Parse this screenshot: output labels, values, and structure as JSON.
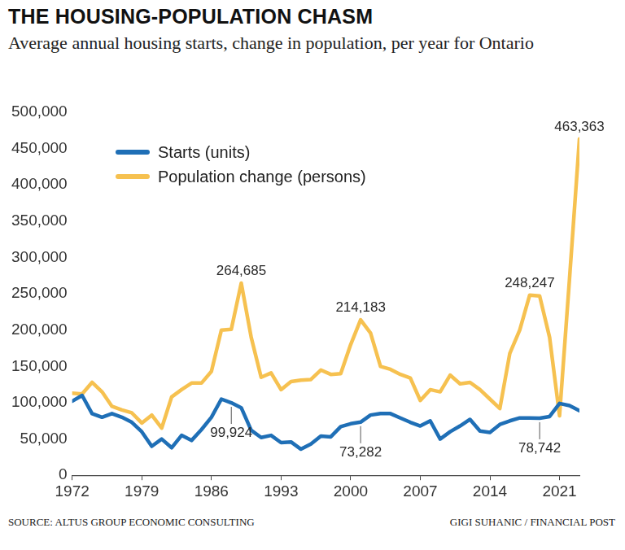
{
  "chart_data": {
    "type": "line",
    "title": "THE HOUSING-POPULATION CHASM",
    "subtitle": "Average annual housing starts, change in population, per year for Ontario",
    "source": "SOURCE: ALTUS GROUP ECONOMIC CONSULTING",
    "credit": "GIGI SUHANIC / FINANCIAL POST",
    "x": [
      1972,
      1973,
      1974,
      1975,
      1976,
      1977,
      1978,
      1979,
      1980,
      1981,
      1982,
      1983,
      1984,
      1985,
      1986,
      1987,
      1988,
      1989,
      1990,
      1991,
      1992,
      1993,
      1994,
      1995,
      1996,
      1997,
      1998,
      1999,
      2000,
      2001,
      2002,
      2003,
      2004,
      2005,
      2006,
      2007,
      2008,
      2009,
      2010,
      2011,
      2012,
      2013,
      2014,
      2015,
      2016,
      2017,
      2018,
      2019,
      2020,
      2021,
      2022,
      2023
    ],
    "series": [
      {
        "name": "Starts (units)",
        "color": "#1f6fb6",
        "values": [
          102000,
          110000,
          85000,
          80000,
          85000,
          80000,
          73000,
          60000,
          40000,
          50000,
          38000,
          55000,
          48000,
          63000,
          80000,
          105000,
          99924,
          93000,
          62000,
          52000,
          55000,
          45000,
          46000,
          36000,
          43000,
          54000,
          53000,
          67000,
          71000,
          73282,
          83000,
          85000,
          85000,
          79000,
          73000,
          68000,
          75000,
          50000,
          60000,
          68000,
          77000,
          61000,
          59000,
          70000,
          75000,
          79000,
          79000,
          78742,
          81000,
          99000,
          96000,
          89000
        ]
      },
      {
        "name": "Population change (persons)",
        "color": "#f6c150",
        "values": [
          113000,
          112000,
          128000,
          115000,
          95000,
          90000,
          86000,
          72000,
          83000,
          65000,
          108000,
          118000,
          127000,
          127000,
          143000,
          200000,
          201000,
          264685,
          190000,
          135000,
          141000,
          118000,
          129000,
          131000,
          132000,
          145000,
          139000,
          140000,
          180000,
          214183,
          196000,
          150000,
          146000,
          139000,
          134000,
          103000,
          118000,
          115000,
          138000,
          126000,
          128000,
          118000,
          105000,
          92000,
          168000,
          200000,
          248247,
          247000,
          190000,
          82000,
          270000,
          463363
        ]
      }
    ],
    "xlim": [
      1972,
      2023
    ],
    "xticks": [
      1972,
      1979,
      1986,
      1993,
      2000,
      2007,
      2014,
      2021
    ],
    "ylim": [
      0,
      500000
    ],
    "yticks": [
      0,
      {
        "value": 50000,
        "label": "50,000"
      },
      {
        "value": 100000,
        "label": "100,000"
      },
      {
        "value": 150000,
        "label": "150,000"
      },
      {
        "value": 200000,
        "label": "200,000"
      },
      {
        "value": 250000,
        "label": "250,000"
      },
      {
        "value": 300000,
        "label": "300,000"
      },
      {
        "value": 350000,
        "label": "350,000"
      },
      {
        "value": 400000,
        "label": "400,000"
      },
      {
        "value": 450000,
        "label": "450,000"
      },
      {
        "value": 500000,
        "label": "500,000"
      }
    ],
    "grid": false,
    "legend": "upper left",
    "annotations": [
      {
        "series": "Population change (persons)",
        "x": 1989,
        "label": "264,685"
      },
      {
        "series": "Population change (persons)",
        "x": 2001,
        "label": "214,183"
      },
      {
        "series": "Population change (persons)",
        "x": 2018,
        "label": "248,247"
      },
      {
        "series": "Population change (persons)",
        "x": 2023,
        "label": "463,363"
      },
      {
        "series": "Starts (units)",
        "x": 1988,
        "label": "99,924"
      },
      {
        "series": "Starts (units)",
        "x": 2001,
        "label": "73,282"
      },
      {
        "series": "Starts (units)",
        "x": 2019,
        "label": "78,742"
      }
    ]
  }
}
